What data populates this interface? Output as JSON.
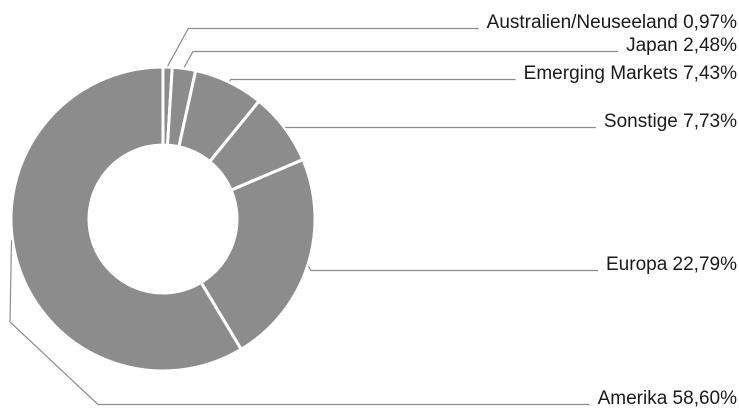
{
  "chart_data": {
    "type": "pie",
    "donut": true,
    "title": "",
    "slices": [
      {
        "label": "Australien/Neuseeland",
        "value": 0.97,
        "value_text": "0,97%"
      },
      {
        "label": "Japan",
        "value": 2.48,
        "value_text": "2,48%"
      },
      {
        "label": "Emerging Markets",
        "value": 7.43,
        "value_text": "7,43%"
      },
      {
        "label": "Sonstige",
        "value": 7.73,
        "value_text": "7,73%"
      },
      {
        "label": "Europa",
        "value": 22.79,
        "value_text": "22,79%"
      },
      {
        "label": "Amerika",
        "value": 58.6,
        "value_text": "58,60%"
      }
    ],
    "colors": {
      "slice_fill": "#8c8c8c",
      "slice_border": "#ffffff",
      "leader_line": "#8c8c8c",
      "label_text": "#1a1a1a"
    },
    "legend": "none"
  }
}
